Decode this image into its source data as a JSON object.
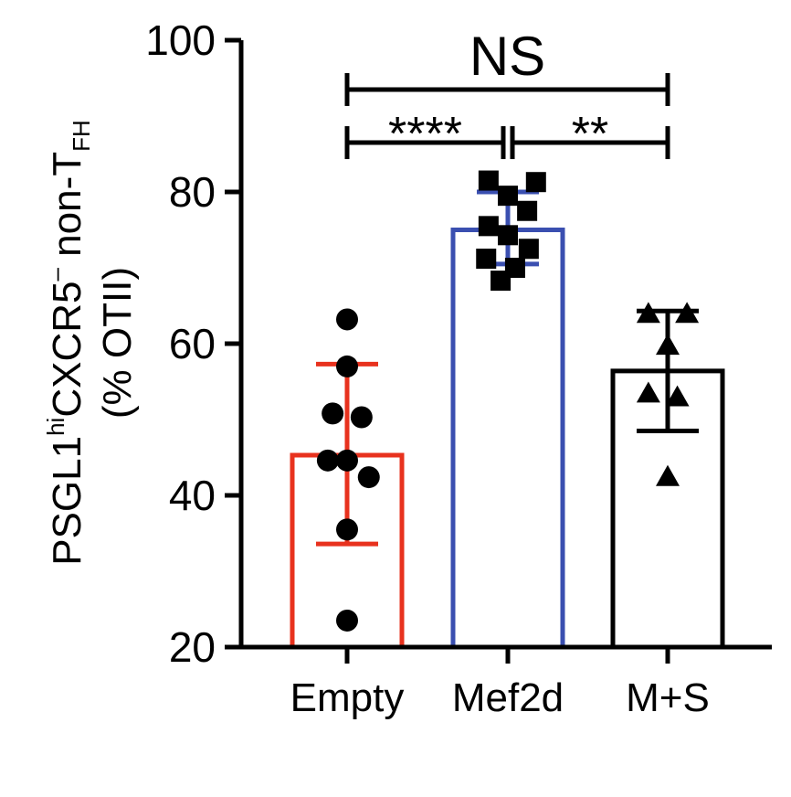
{
  "chart_data": {
    "type": "bar",
    "categories": [
      "Empty",
      "Mef2d",
      "M+S"
    ],
    "ylabel_line1_main": "PSGL1",
    "ylabel_line1_sup": "hi",
    "ylabel_line1_rest": "CXCR5",
    "ylabel_line1_minus": "–",
    "ylabel_line1_tail": " non-T",
    "ylabel_line1_sub": "FH",
    "ylabel_line2": "(% OTII)",
    "ylim": [
      20,
      100
    ],
    "yticks": [
      20,
      40,
      60,
      80,
      100
    ],
    "bar_colors": [
      "#e8321e",
      "#3a4fb0",
      "#000000"
    ],
    "bars": [
      {
        "category": "Empty",
        "mean": 45.3,
        "error_low": 33.6,
        "error_high": 57.3,
        "marker": "circle",
        "points": [
          {
            "x": 0.0,
            "y": 63.2
          },
          {
            "x": 0.0,
            "y": 57.0
          },
          {
            "x": -0.18,
            "y": 50.8
          },
          {
            "x": 0.18,
            "y": 50.3
          },
          {
            "x": -0.24,
            "y": 44.6
          },
          {
            "x": 0.0,
            "y": 44.6
          },
          {
            "x": 0.27,
            "y": 42.4
          },
          {
            "x": 0.0,
            "y": 35.5
          },
          {
            "x": 0.0,
            "y": 23.5
          }
        ]
      },
      {
        "category": "Mef2d",
        "mean": 75.0,
        "error_low": 70.5,
        "error_high": 80.0,
        "marker": "square",
        "points": [
          {
            "x": -0.24,
            "y": 81.5
          },
          {
            "x": 0.0,
            "y": 79.5
          },
          {
            "x": 0.35,
            "y": 81.3
          },
          {
            "x": 0.24,
            "y": 77.5
          },
          {
            "x": -0.24,
            "y": 75.5
          },
          {
            "x": 0.0,
            "y": 74.3
          },
          {
            "x": 0.26,
            "y": 72.5
          },
          {
            "x": -0.27,
            "y": 71.2
          },
          {
            "x": 0.09,
            "y": 70.0
          },
          {
            "x": -0.09,
            "y": 68.3
          }
        ]
      },
      {
        "category": "M+S",
        "mean": 56.4,
        "error_low": 48.5,
        "error_high": 64.3,
        "marker": "triangle",
        "points": [
          {
            "x": -0.24,
            "y": 64.0
          },
          {
            "x": 0.24,
            "y": 64.0
          },
          {
            "x": 0.0,
            "y": 59.8
          },
          {
            "x": -0.24,
            "y": 53.5
          },
          {
            "x": 0.12,
            "y": 53.0
          },
          {
            "x": 0.0,
            "y": 42.5
          }
        ]
      }
    ],
    "significance": [
      {
        "from": "Empty",
        "to": "M+S",
        "y": 93.5,
        "label": "NS",
        "size": "large"
      },
      {
        "from": "Empty",
        "to": "Mef2d",
        "y": 86.5,
        "label": "****",
        "size": "small"
      },
      {
        "from": "Mef2d",
        "to": "M+S",
        "y": 86.5,
        "label": "**",
        "size": "small"
      }
    ]
  }
}
